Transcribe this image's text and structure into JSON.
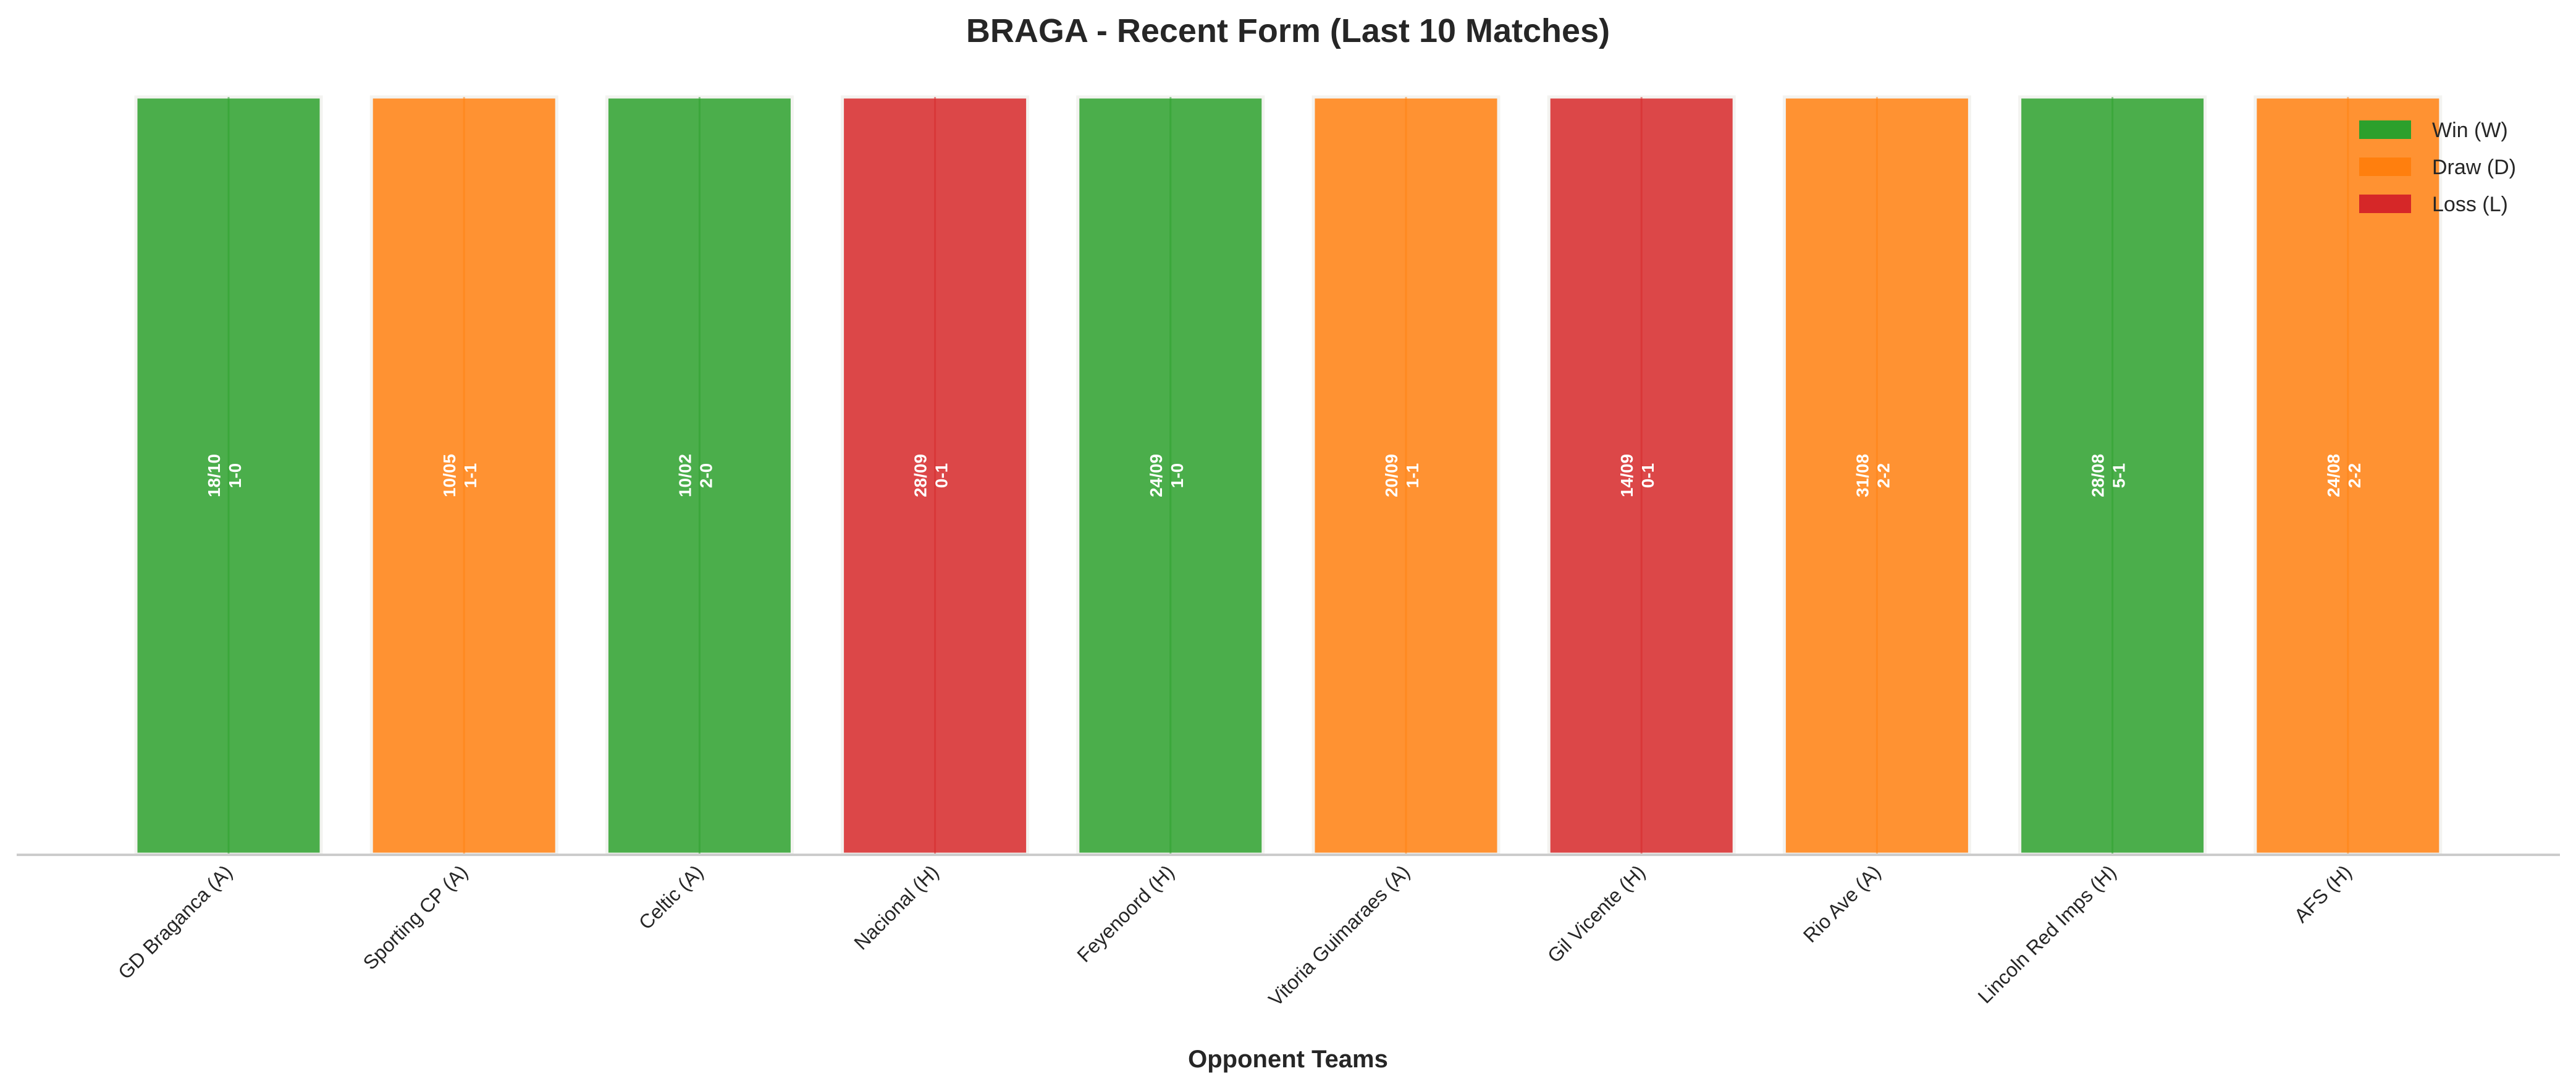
{
  "chart_data": {
    "type": "bar",
    "title": "BRAGA - Recent Form (Last 10 Matches)",
    "xlabel": "Opponent Teams",
    "ylabel": "",
    "ylim": [
      0,
      1
    ],
    "grid": false,
    "legend_placement": "top-right",
    "categories": [
      "GD Braganca (A)",
      "Sporting CP (A)",
      "Celtic (A)",
      "Nacional (H)",
      "Feyenoord (H)",
      "Vitoria Guimaraes (A)",
      "Gil Vicente (H)",
      "Rio Ave (A)",
      "Lincoln Red Imps (H)",
      "AFS (H)"
    ],
    "values": [
      1,
      1,
      1,
      1,
      1,
      1,
      1,
      1,
      1,
      1
    ],
    "results": [
      "W",
      "D",
      "W",
      "L",
      "W",
      "D",
      "L",
      "D",
      "W",
      "D"
    ],
    "dates": [
      "18/10",
      "10/05",
      "10/02",
      "28/09",
      "24/09",
      "20/09",
      "14/09",
      "31/08",
      "28/08",
      "24/08"
    ],
    "scores": [
      "1-0",
      "1-1",
      "2-0",
      "0-1",
      "1-0",
      "1-1",
      "0-1",
      "2-2",
      "5-1",
      "2-2"
    ],
    "legend": [
      {
        "key": "W",
        "label": "Win (W)",
        "color": "#2ca02c"
      },
      {
        "key": "D",
        "label": "Draw (D)",
        "color": "#ff7f0e"
      },
      {
        "key": "L",
        "label": "Loss (L)",
        "color": "#d62728"
      }
    ]
  }
}
